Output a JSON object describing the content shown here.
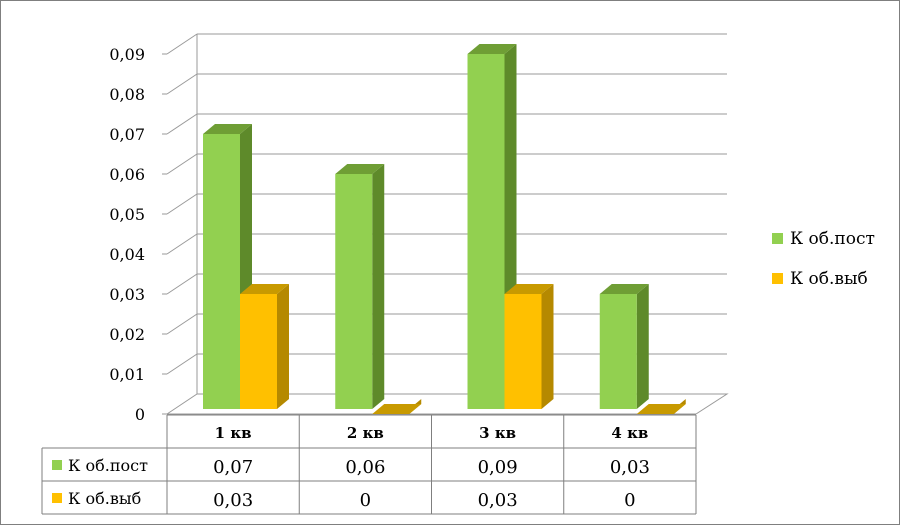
{
  "chart_data": {
    "type": "bar",
    "style": "3d-clustered-column-with-data-table",
    "categories": [
      "1 кв",
      "2 кв",
      "3 кв",
      "4 кв"
    ],
    "series": [
      {
        "name": "К об.пост",
        "values": [
          0.07,
          0.06,
          0.09,
          0.03
        ],
        "value_labels": [
          "0,07",
          "0,06",
          "0,09",
          "0,03"
        ],
        "color": "#92d050",
        "side_color": "#5e8a2a",
        "top_color": "#6f9e35"
      },
      {
        "name": "К об.выб",
        "values": [
          0.03,
          0,
          0.03,
          0
        ],
        "value_labels": [
          "0,03",
          "0",
          "0,03",
          "0"
        ],
        "color": "#ffc000",
        "side_color": "#b58900",
        "top_color": "#c89a00"
      }
    ],
    "y_ticks": [
      "0",
      "0,01",
      "0,02",
      "0,03",
      "0,04",
      "0,05",
      "0,06",
      "0,07",
      "0,08",
      "0,09"
    ],
    "ylim": [
      0,
      0.09
    ],
    "grid": true,
    "legend_placement": "right",
    "title": "",
    "xlabel": "",
    "ylabel": ""
  }
}
